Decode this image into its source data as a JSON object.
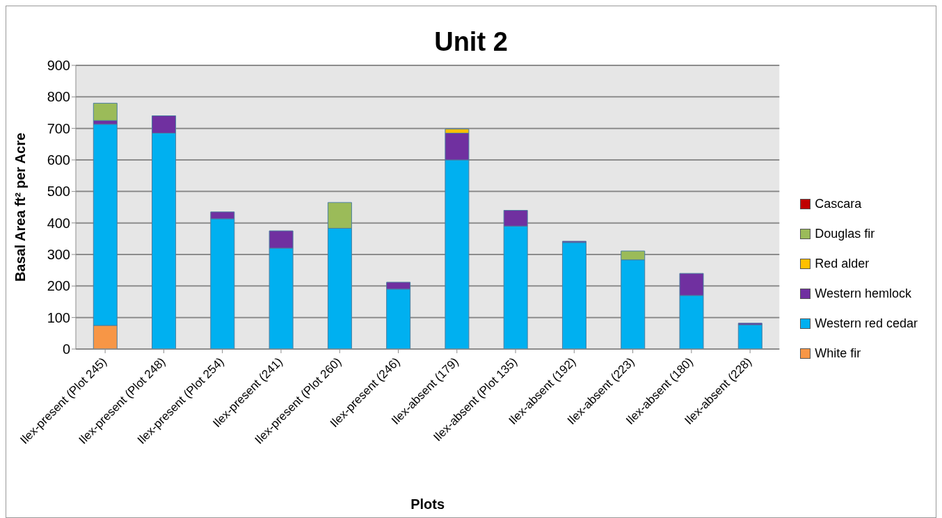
{
  "chart_data": {
    "type": "bar",
    "title": "Unit 2",
    "xlabel": "Plots",
    "ylabel": "Basal Area ft² per Acre",
    "stacked": true,
    "legend": "right",
    "grid": "y",
    "ylim": [
      0,
      900
    ],
    "yticks": [
      0,
      100,
      200,
      300,
      400,
      500,
      600,
      700,
      800,
      900
    ],
    "categories": [
      "Ilex-present (Plot 245)",
      "Ilex-present (Plot 248)",
      "Ilex-present (Plot 254)",
      "Ilex-present (241)",
      "Ilex-present (Plot 260)",
      "Ilex-present (246)",
      "Ilex-absent (179)",
      "Ilex-absent (Plot 135)",
      "Ilex-absent (192)",
      "Ilex-absent (223)",
      "Ilex-absent (180)",
      "Ilex-absent (228)"
    ],
    "series": [
      {
        "name": "White fir",
        "color": "#f79646",
        "values": [
          75,
          0,
          0,
          0,
          0,
          0,
          0,
          0,
          0,
          0,
          0,
          0
        ]
      },
      {
        "name": "Western red cedar",
        "color": "#00b0f0",
        "values": [
          638,
          685,
          413,
          320,
          383,
          190,
          600,
          390,
          338,
          283,
          170,
          77
        ]
      },
      {
        "name": "Western hemlock",
        "color": "#7030a0",
        "values": [
          12,
          55,
          22,
          55,
          0,
          22,
          85,
          50,
          4,
          0,
          70,
          5
        ]
      },
      {
        "name": "Red alder",
        "color": "#ffc000",
        "values": [
          0,
          0,
          0,
          0,
          0,
          0,
          13,
          0,
          0,
          0,
          0,
          0
        ]
      },
      {
        "name": "Douglas fir",
        "color": "#9bbb59",
        "values": [
          55,
          0,
          0,
          0,
          82,
          0,
          0,
          0,
          0,
          28,
          0,
          0
        ]
      },
      {
        "name": "Cascara",
        "color": "#c00000",
        "values": [
          0,
          0,
          0,
          0,
          0,
          0,
          0,
          0,
          0,
          0,
          0,
          0
        ]
      }
    ]
  }
}
